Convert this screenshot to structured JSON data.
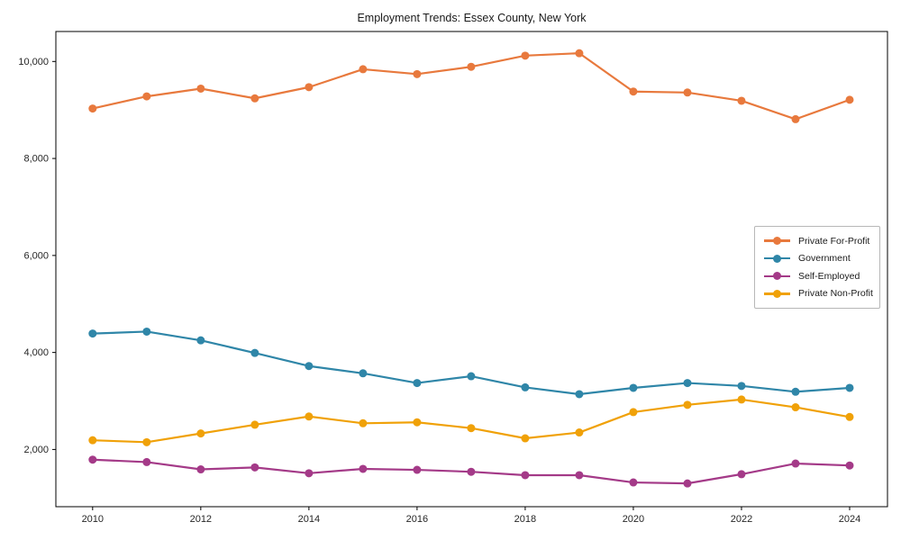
{
  "figure": {
    "title": "Employment Trends: Essex County, New York",
    "background_color": "#ffffff",
    "axis_color": "#000000",
    "tick_label_color": "#262626"
  },
  "chart_data": {
    "type": "line",
    "title": "Employment Trends: Essex County, New York",
    "xlabel": "",
    "ylabel": "",
    "grid": false,
    "legend_position": "center right",
    "x": [
      2010,
      2011,
      2012,
      2013,
      2014,
      2015,
      2016,
      2017,
      2018,
      2019,
      2020,
      2021,
      2022,
      2023,
      2024
    ],
    "x_ticks": [
      2010,
      2012,
      2014,
      2016,
      2018,
      2020,
      2022,
      2024
    ],
    "y_ticks": [
      2000,
      4000,
      6000,
      8000,
      10000
    ],
    "y_tick_labels": [
      "2,000",
      "4,000",
      "6,000",
      "8,000",
      "10,000"
    ],
    "xlim": [
      2009.32,
      2024.7
    ],
    "ylim": [
      820,
      10618
    ],
    "series": [
      {
        "name": "Private For-Profit",
        "color": "#E8793D",
        "marker": "circle",
        "values": [
          9030,
          9280,
          9440,
          9240,
          9470,
          9840,
          9740,
          9890,
          10120,
          10170,
          9380,
          9360,
          9190,
          8810,
          9210
        ]
      },
      {
        "name": "Government",
        "color": "#2F86A8",
        "marker": "circle",
        "values": [
          4390,
          4430,
          4250,
          3990,
          3720,
          3570,
          3370,
          3510,
          3280,
          3140,
          3270,
          3370,
          3310,
          3190,
          3270
        ]
      },
      {
        "name": "Self-Employed",
        "color": "#A43A88",
        "marker": "circle",
        "values": [
          1790,
          1740,
          1590,
          1630,
          1510,
          1600,
          1580,
          1540,
          1470,
          1470,
          1320,
          1300,
          1490,
          1710,
          1670
        ]
      },
      {
        "name": "Private Non-Profit",
        "color": "#F0A108",
        "marker": "circle",
        "values": [
          2190,
          2150,
          2330,
          2510,
          2680,
          2540,
          2560,
          2440,
          2230,
          2350,
          2770,
          2920,
          3030,
          2870,
          2670
        ]
      }
    ]
  }
}
